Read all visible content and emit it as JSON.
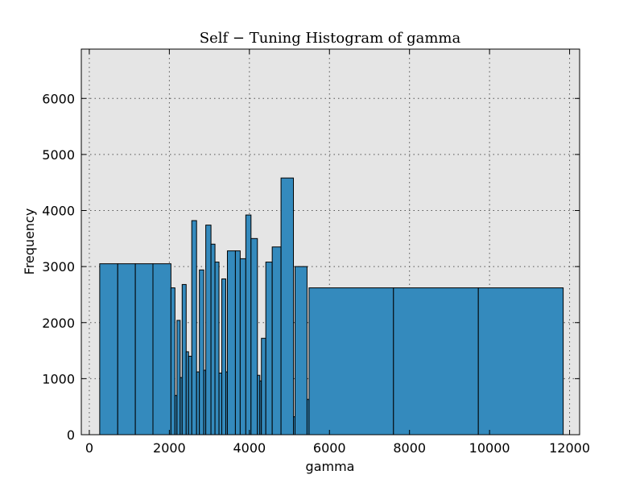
{
  "chart_data": {
    "type": "bar",
    "title": "Self − Tuning Histogram of gamma",
    "xlabel": "gamma",
    "ylabel": "Frequency",
    "xlim": [
      -200,
      12250
    ],
    "ylim": [
      0,
      6880
    ],
    "xticks": [
      "0",
      "2000",
      "4000",
      "6000",
      "8000",
      "10000",
      "12000"
    ],
    "yticks": [
      "0",
      "1000",
      "2000",
      "3000",
      "4000",
      "5000",
      "6000"
    ],
    "grid": true,
    "background_color": "#e5e5e5",
    "bar_color": "#348abd",
    "edge_color": "#000000",
    "bins": [
      {
        "x0": 260,
        "x1": 710,
        "value": 3050
      },
      {
        "x0": 710,
        "x1": 1150,
        "value": 3050
      },
      {
        "x0": 1150,
        "x1": 1590,
        "value": 3050
      },
      {
        "x0": 1590,
        "x1": 2040,
        "value": 3050
      },
      {
        "x0": 2040,
        "x1": 2140,
        "value": 2620
      },
      {
        "x0": 2140,
        "x1": 2190,
        "value": 700
      },
      {
        "x0": 2190,
        "x1": 2270,
        "value": 2040
      },
      {
        "x0": 2270,
        "x1": 2320,
        "value": 1020
      },
      {
        "x0": 2320,
        "x1": 2420,
        "value": 2680
      },
      {
        "x0": 2420,
        "x1": 2480,
        "value": 1480
      },
      {
        "x0": 2480,
        "x1": 2560,
        "value": 1400
      },
      {
        "x0": 2560,
        "x1": 2680,
        "value": 3820
      },
      {
        "x0": 2680,
        "x1": 2750,
        "value": 1120
      },
      {
        "x0": 2750,
        "x1": 2860,
        "value": 2940
      },
      {
        "x0": 2860,
        "x1": 2910,
        "value": 1150
      },
      {
        "x0": 2910,
        "x1": 3040,
        "value": 3740
      },
      {
        "x0": 3040,
        "x1": 3140,
        "value": 3400
      },
      {
        "x0": 3140,
        "x1": 3240,
        "value": 3080
      },
      {
        "x0": 3240,
        "x1": 3310,
        "value": 1100
      },
      {
        "x0": 3310,
        "x1": 3410,
        "value": 2780
      },
      {
        "x0": 3410,
        "x1": 3450,
        "value": 1120
      },
      {
        "x0": 3450,
        "x1": 3650,
        "value": 3280
      },
      {
        "x0": 3650,
        "x1": 3770,
        "value": 3280
      },
      {
        "x0": 3770,
        "x1": 3910,
        "value": 3140
      },
      {
        "x0": 3910,
        "x1": 4040,
        "value": 3920
      },
      {
        "x0": 4040,
        "x1": 4200,
        "value": 3500
      },
      {
        "x0": 4200,
        "x1": 4260,
        "value": 1060
      },
      {
        "x0": 4260,
        "x1": 4300,
        "value": 960
      },
      {
        "x0": 4300,
        "x1": 4410,
        "value": 1720
      },
      {
        "x0": 4410,
        "x1": 4570,
        "value": 3080
      },
      {
        "x0": 4570,
        "x1": 4790,
        "value": 3350
      },
      {
        "x0": 4790,
        "x1": 5100,
        "value": 4580
      },
      {
        "x0": 5100,
        "x1": 5140,
        "value": 320
      },
      {
        "x0": 5140,
        "x1": 5440,
        "value": 3000
      },
      {
        "x0": 5440,
        "x1": 5490,
        "value": 630
      },
      {
        "x0": 5490,
        "x1": 7600,
        "value": 2620
      },
      {
        "x0": 7600,
        "x1": 9720,
        "value": 2620
      },
      {
        "x0": 9720,
        "x1": 11840,
        "value": 2620
      }
    ]
  }
}
